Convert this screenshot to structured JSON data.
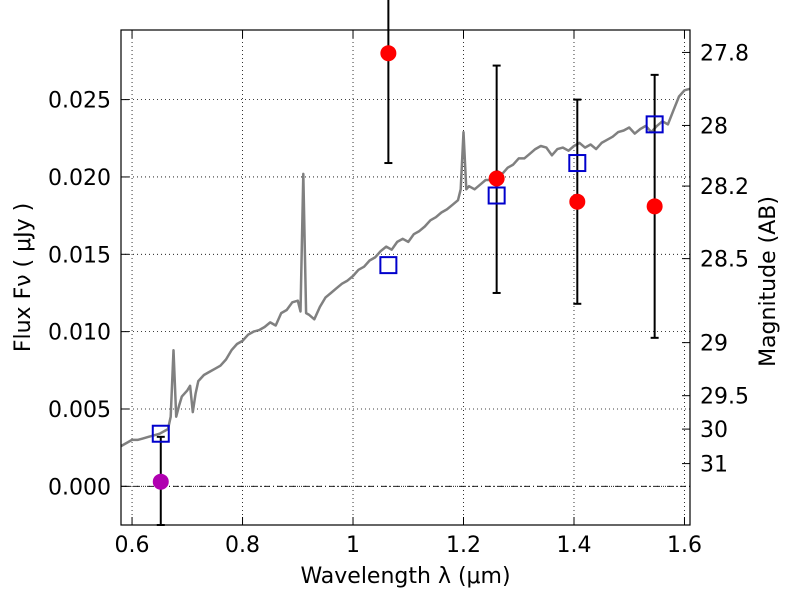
{
  "chart_data": {
    "type": "scatter",
    "xlabel": "Wavelength  λ (μm)",
    "ylabel_left": "Flux  Fν  ( μJy )",
    "ylabel_right": "Magnitude (AB)",
    "xlim": [
      0.58,
      1.61
    ],
    "ylim": [
      -0.0025,
      0.0295
    ],
    "x_ticks": [
      0.6,
      0.8,
      1.0,
      1.2,
      1.4,
      1.6
    ],
    "x_tick_labels": [
      "0.6",
      "0.8",
      "1",
      "1.2",
      "1.4",
      "1.6"
    ],
    "y_ticks": [
      0.0,
      0.005,
      0.01,
      0.015,
      0.02,
      0.025
    ],
    "y_tick_labels": [
      "0.000",
      "0.005",
      "0.010",
      "0.015",
      "0.020",
      "0.025"
    ],
    "right_ticks": [
      {
        "label": "27.8",
        "flux": 0.02805
      },
      {
        "label": "28",
        "flux": 0.02333
      },
      {
        "label": "28.2",
        "flux": 0.01941
      },
      {
        "label": "28.5",
        "flux": 0.01472
      },
      {
        "label": "29",
        "flux": 0.00929
      },
      {
        "label": "29.5",
        "flux": 0.00586
      },
      {
        "label": "30",
        "flux": 0.0037
      },
      {
        "label": "31",
        "flux": 0.00147
      }
    ],
    "grid": true,
    "colors": {
      "spectrum": "#808080",
      "model_photometry": "#0000cc",
      "observed": "#ff0000",
      "upper_limit_point": "#b000b0",
      "error_bar": "#000000",
      "zero_line": "#000000"
    },
    "spectrum": {
      "x": [
        0.58,
        0.59,
        0.6,
        0.61,
        0.62,
        0.63,
        0.64,
        0.65,
        0.66,
        0.665,
        0.67,
        0.675,
        0.68,
        0.685,
        0.69,
        0.7,
        0.705,
        0.71,
        0.715,
        0.72,
        0.73,
        0.74,
        0.75,
        0.76,
        0.77,
        0.78,
        0.79,
        0.8,
        0.81,
        0.82,
        0.83,
        0.84,
        0.85,
        0.86,
        0.87,
        0.88,
        0.89,
        0.9,
        0.905,
        0.91,
        0.915,
        0.92,
        0.93,
        0.94,
        0.95,
        0.96,
        0.97,
        0.98,
        0.99,
        1.0,
        1.01,
        1.02,
        1.03,
        1.04,
        1.05,
        1.06,
        1.07,
        1.08,
        1.09,
        1.1,
        1.11,
        1.12,
        1.13,
        1.14,
        1.15,
        1.16,
        1.17,
        1.18,
        1.19,
        1.195,
        1.2,
        1.205,
        1.21,
        1.22,
        1.23,
        1.24,
        1.25,
        1.26,
        1.27,
        1.28,
        1.29,
        1.3,
        1.31,
        1.32,
        1.33,
        1.34,
        1.35,
        1.36,
        1.37,
        1.38,
        1.39,
        1.4,
        1.41,
        1.42,
        1.43,
        1.44,
        1.45,
        1.46,
        1.47,
        1.48,
        1.49,
        1.5,
        1.51,
        1.52,
        1.53,
        1.54,
        1.55,
        1.56,
        1.57,
        1.58,
        1.59,
        1.6,
        1.61
      ],
      "y": [
        0.0026,
        0.0028,
        0.003,
        0.003,
        0.0031,
        0.0032,
        0.0033,
        0.0034,
        0.0036,
        0.0037,
        0.0045,
        0.0088,
        0.0045,
        0.0052,
        0.0058,
        0.0062,
        0.0065,
        0.0048,
        0.006,
        0.0068,
        0.0072,
        0.0074,
        0.0076,
        0.0078,
        0.0082,
        0.0088,
        0.0092,
        0.0094,
        0.0098,
        0.01,
        0.0101,
        0.0103,
        0.0106,
        0.0104,
        0.0112,
        0.0114,
        0.0119,
        0.012,
        0.0113,
        0.0202,
        0.0112,
        0.0111,
        0.0108,
        0.0116,
        0.0122,
        0.0125,
        0.0128,
        0.0131,
        0.0133,
        0.0136,
        0.014,
        0.0142,
        0.0146,
        0.0148,
        0.0152,
        0.0155,
        0.0153,
        0.0158,
        0.016,
        0.0158,
        0.0163,
        0.0165,
        0.0168,
        0.0172,
        0.0174,
        0.0177,
        0.0179,
        0.0182,
        0.0185,
        0.0192,
        0.0229,
        0.0192,
        0.0194,
        0.0192,
        0.0195,
        0.0198,
        0.0198,
        0.0204,
        0.0202,
        0.0206,
        0.0208,
        0.0212,
        0.0212,
        0.0215,
        0.0218,
        0.022,
        0.0219,
        0.0214,
        0.0218,
        0.0219,
        0.0217,
        0.022,
        0.0222,
        0.0219,
        0.0221,
        0.0218,
        0.0222,
        0.0224,
        0.0226,
        0.0229,
        0.023,
        0.0232,
        0.0228,
        0.0231,
        0.0233,
        0.0229,
        0.0233,
        0.0236,
        0.0234,
        0.0243,
        0.0252,
        0.0256,
        0.0257
      ]
    },
    "model_photometry": {
      "x": [
        0.652,
        1.064,
        1.26,
        1.406,
        1.546
      ],
      "y": [
        0.0034,
        0.0143,
        0.0188,
        0.0209,
        0.0234
      ]
    },
    "observed": {
      "x": [
        1.064,
        1.26,
        1.406,
        1.546
      ],
      "y": [
        0.028,
        0.0199,
        0.0184,
        0.0181
      ],
      "err_low": [
        0.0071,
        0.0074,
        0.0066,
        0.0085
      ],
      "err_high": [
        0.0072,
        0.0073,
        0.0066,
        0.0085
      ]
    },
    "upper_limit_point": {
      "x": 0.652,
      "y": 0.0003,
      "err_low": 0.0028,
      "err_high": 0.0029
    }
  }
}
